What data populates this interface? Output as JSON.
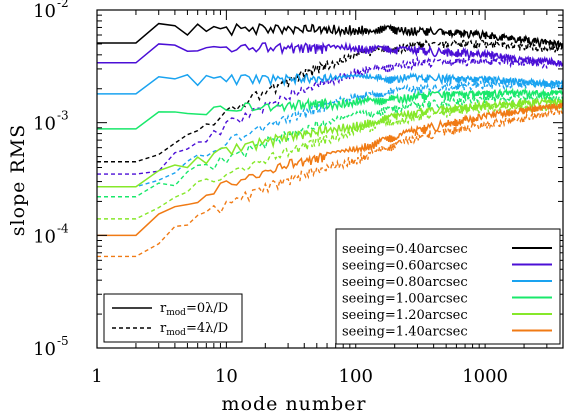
{
  "chart_data": {
    "type": "line",
    "xlabel": "mode number",
    "ylabel": "slope RMS",
    "xscale": "log",
    "yscale": "log",
    "xlim": [
      1,
      4000
    ],
    "ylim": [
      1e-05,
      0.01
    ],
    "x_ticks": [
      "1",
      "10",
      "100",
      "1000"
    ],
    "y_ticks": [
      {
        "base": "10",
        "exp": "-5"
      },
      {
        "base": "10",
        "exp": "-4"
      },
      {
        "base": "10",
        "exp": "-3"
      },
      {
        "base": "10",
        "exp": "-2"
      }
    ],
    "legend_placement": "bottom-right",
    "style_legend_placement": "bottom-left",
    "style_legend": [
      {
        "main": "r",
        "sub": "mod",
        "suffix": "=0λ/D",
        "dash": "solid"
      },
      {
        "main": "r",
        "sub": "mod",
        "suffix": "=4λ/D",
        "dash": "dashed"
      }
    ],
    "line_styles": {
      "solid": "r_mod=0λ/D",
      "dashed": "r_mod=4λ/D"
    },
    "series": [
      {
        "name": "seeing=0.40arcsec",
        "color": "#000000",
        "solid": [
          [
            1,
            0.0051
          ],
          [
            2,
            0.0051
          ],
          [
            3,
            0.0075
          ],
          [
            5,
            0.0072
          ],
          [
            10,
            0.0072
          ],
          [
            30,
            0.0072
          ],
          [
            100,
            0.0071
          ],
          [
            300,
            0.0069
          ],
          [
            1000,
            0.0063
          ],
          [
            4000,
            0.0051
          ]
        ],
        "dashed": [
          [
            1,
            0.00045
          ],
          [
            2,
            0.00045
          ],
          [
            3,
            0.00058
          ],
          [
            5,
            0.0008
          ],
          [
            10,
            0.0013
          ],
          [
            20,
            0.002
          ],
          [
            50,
            0.0032
          ],
          [
            100,
            0.0042
          ],
          [
            300,
            0.0052
          ],
          [
            1000,
            0.0052
          ],
          [
            4000,
            0.0046
          ]
        ]
      },
      {
        "name": "seeing=0.60arcsec",
        "color": "#4b0fd6",
        "solid": [
          [
            1,
            0.0034
          ],
          [
            2,
            0.0034
          ],
          [
            3,
            0.005
          ],
          [
            5,
            0.0049
          ],
          [
            10,
            0.0049
          ],
          [
            30,
            0.0049
          ],
          [
            100,
            0.0048
          ],
          [
            300,
            0.0046
          ],
          [
            1000,
            0.0042
          ],
          [
            4000,
            0.0035
          ]
        ],
        "dashed": [
          [
            1,
            0.00035
          ],
          [
            2,
            0.00035
          ],
          [
            3,
            0.00045
          ],
          [
            5,
            0.0006
          ],
          [
            10,
            0.001
          ],
          [
            20,
            0.0015
          ],
          [
            50,
            0.0023
          ],
          [
            100,
            0.003
          ],
          [
            300,
            0.0036
          ],
          [
            1000,
            0.0037
          ],
          [
            4000,
            0.0033
          ]
        ]
      },
      {
        "name": "seeing=0.80arcsec",
        "color": "#1aa3f0",
        "solid": [
          [
            1,
            0.0018
          ],
          [
            2,
            0.0018
          ],
          [
            3,
            0.0026
          ],
          [
            5,
            0.0026
          ],
          [
            10,
            0.0026
          ],
          [
            30,
            0.0026
          ],
          [
            100,
            0.0026
          ],
          [
            300,
            0.0026
          ],
          [
            1000,
            0.0025
          ],
          [
            4000,
            0.0023
          ]
        ],
        "dashed": [
          [
            1,
            0.00027
          ],
          [
            2,
            0.00027
          ],
          [
            3,
            0.00035
          ],
          [
            5,
            0.00045
          ],
          [
            10,
            0.0007
          ],
          [
            20,
            0.001
          ],
          [
            50,
            0.0014
          ],
          [
            100,
            0.0018
          ],
          [
            300,
            0.0021
          ],
          [
            1000,
            0.0023
          ],
          [
            4000,
            0.0022
          ]
        ]
      },
      {
        "name": "seeing=1.00arcsec",
        "color": "#19e86b",
        "solid": [
          [
            1,
            0.00088
          ],
          [
            2,
            0.00088
          ],
          [
            3,
            0.0013
          ],
          [
            5,
            0.0013
          ],
          [
            10,
            0.0014
          ],
          [
            30,
            0.0015
          ],
          [
            100,
            0.0016
          ],
          [
            300,
            0.0018
          ],
          [
            1000,
            0.0019
          ],
          [
            4000,
            0.0019
          ]
        ],
        "dashed": [
          [
            1,
            0.00022
          ],
          [
            2,
            0.00022
          ],
          [
            3,
            0.00028
          ],
          [
            5,
            0.00037
          ],
          [
            10,
            0.0005
          ],
          [
            20,
            0.0007
          ],
          [
            50,
            0.001
          ],
          [
            100,
            0.0012
          ],
          [
            300,
            0.0015
          ],
          [
            1000,
            0.0017
          ],
          [
            4000,
            0.0017
          ]
        ]
      },
      {
        "name": "seeing=1.20arcsec",
        "color": "#86e82a",
        "solid": [
          [
            1,
            0.00027
          ],
          [
            2,
            0.00027
          ],
          [
            3,
            0.00039
          ],
          [
            5,
            0.00045
          ],
          [
            10,
            0.0006
          ],
          [
            30,
            0.0008
          ],
          [
            100,
            0.001
          ],
          [
            300,
            0.0013
          ],
          [
            1000,
            0.0015
          ],
          [
            4000,
            0.0016
          ]
        ],
        "dashed": [
          [
            1,
            0.00014
          ],
          [
            2,
            0.00014
          ],
          [
            3,
            0.0002
          ],
          [
            5,
            0.00027
          ],
          [
            10,
            0.00037
          ],
          [
            20,
            0.0005
          ],
          [
            50,
            0.00072
          ],
          [
            100,
            0.0009
          ],
          [
            300,
            0.0012
          ],
          [
            1000,
            0.0014
          ],
          [
            4000,
            0.0014
          ]
        ]
      },
      {
        "name": "seeing=1.40arcsec",
        "color": "#f07a14",
        "solid": [
          [
            1,
            0.0001
          ],
          [
            2,
            0.0001
          ],
          [
            3,
            0.00015
          ],
          [
            5,
            0.0002
          ],
          [
            10,
            0.0003
          ],
          [
            30,
            0.00045
          ],
          [
            100,
            0.0006
          ],
          [
            300,
            0.0009
          ],
          [
            1000,
            0.0012
          ],
          [
            4000,
            0.0015
          ]
        ],
        "dashed": [
          [
            1,
            6.5e-05
          ],
          [
            2,
            6.5e-05
          ],
          [
            3,
            0.0001
          ],
          [
            5,
            0.00014
          ],
          [
            10,
            0.0002
          ],
          [
            20,
            0.00028
          ],
          [
            50,
            0.0004
          ],
          [
            100,
            0.0005
          ],
          [
            300,
            0.0008
          ],
          [
            1000,
            0.001
          ],
          [
            4000,
            0.0013
          ]
        ]
      }
    ]
  }
}
